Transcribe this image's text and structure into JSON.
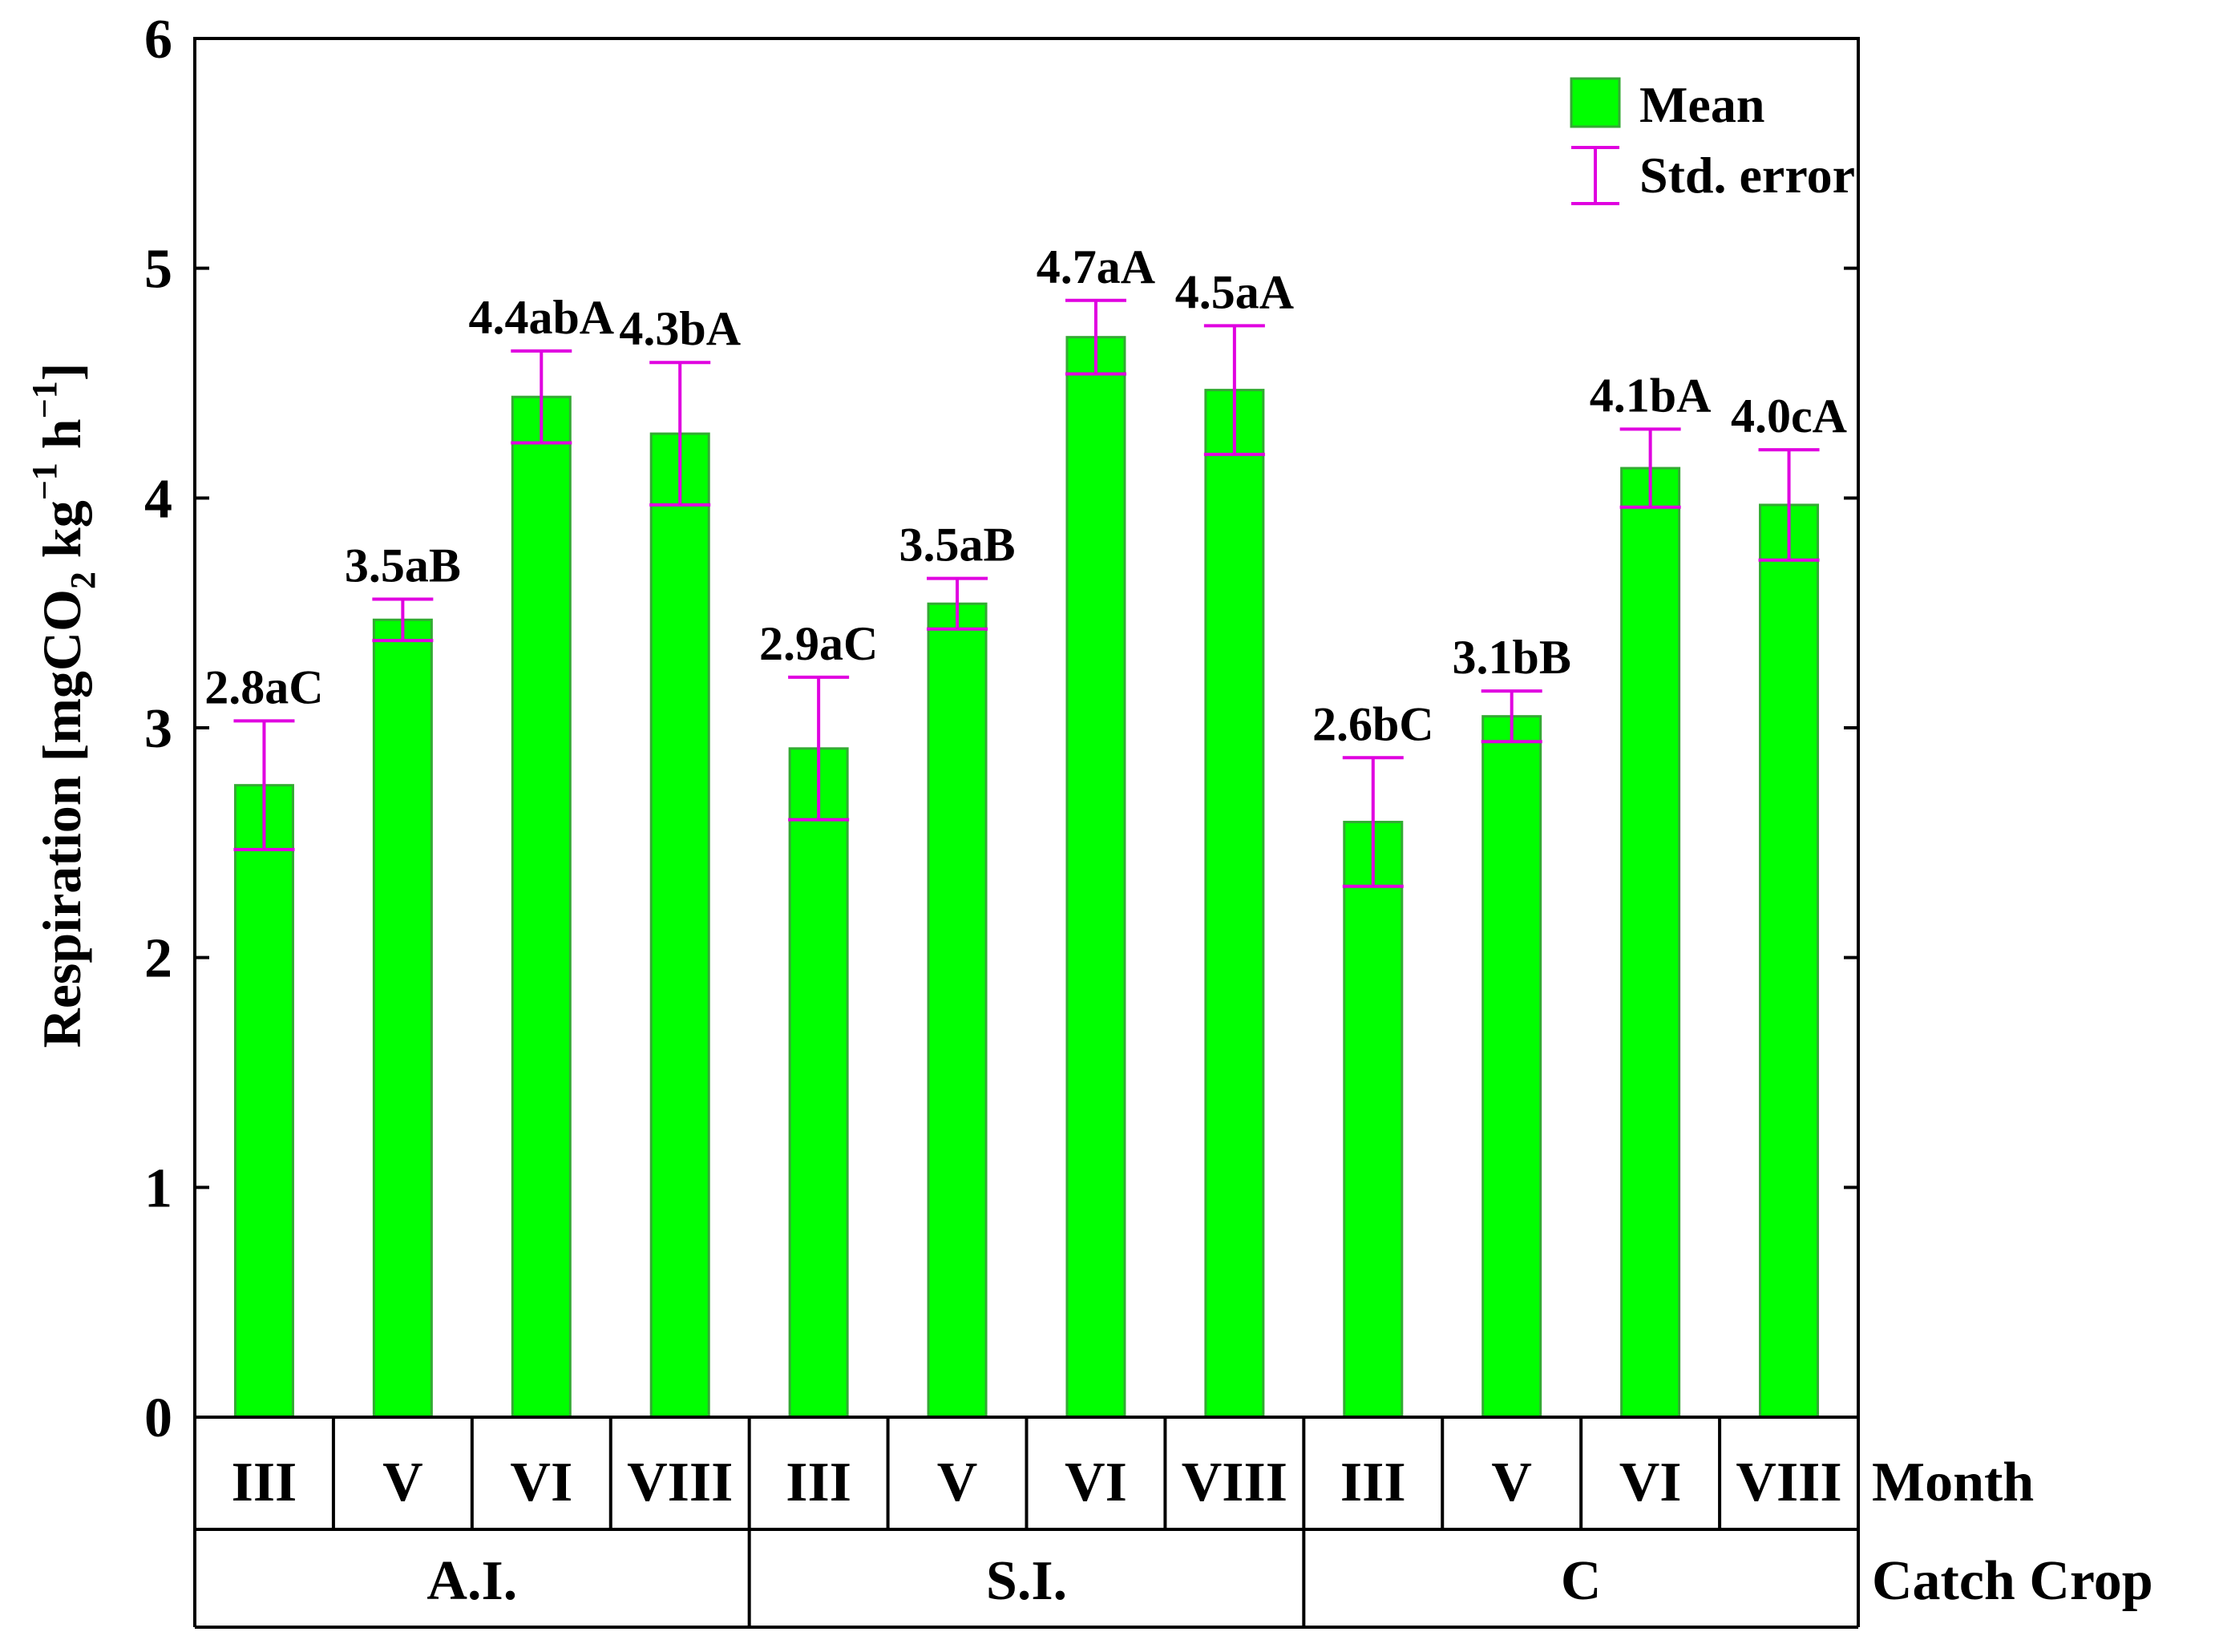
{
  "chart_data": {
    "type": "bar",
    "title": "",
    "ylabel_main": "Respiration [mgCO",
    "ylabel_sub": "2",
    "ylabel_rest1": " kg",
    "ylabel_sup1": "−1",
    "ylabel_rest2": " h",
    "ylabel_sup2": "−1",
    "ylabel_close": "]",
    "ylim": [
      0,
      6
    ],
    "yticks": [
      "0",
      "1",
      "2",
      "3",
      "4",
      "5",
      "6"
    ],
    "row_labels": {
      "month": "Month",
      "crop": "Catch Crop"
    },
    "groups": [
      "A.I.",
      "S.I.",
      "C"
    ],
    "months": [
      "III",
      "V",
      "VI",
      "VIII",
      "III",
      "V",
      "VI",
      "VIII",
      "III",
      "V",
      "VI",
      "VIII"
    ],
    "values": [
      2.75,
      3.47,
      4.44,
      4.28,
      2.91,
      3.54,
      4.7,
      4.47,
      2.59,
      3.05,
      4.13,
      3.97
    ],
    "errors": [
      0.28,
      0.09,
      0.2,
      0.31,
      0.31,
      0.11,
      0.16,
      0.28,
      0.28,
      0.11,
      0.17,
      0.24
    ],
    "labels": [
      "2.8aC",
      "3.5aB",
      "4.4abA",
      "4.3bA",
      "2.9aC",
      "3.5aB",
      "4.7aA",
      "4.5aA",
      "2.6bC",
      "3.1bB",
      "4.1bA",
      "4.0cA"
    ],
    "legend": {
      "mean": "Mean",
      "stderr": "Std. error",
      "position": "top-right"
    },
    "colors": {
      "bar_fill": "#00ff00",
      "bar_stroke": "#33aa33",
      "error": "#e000e0",
      "axis": "#000000"
    }
  }
}
